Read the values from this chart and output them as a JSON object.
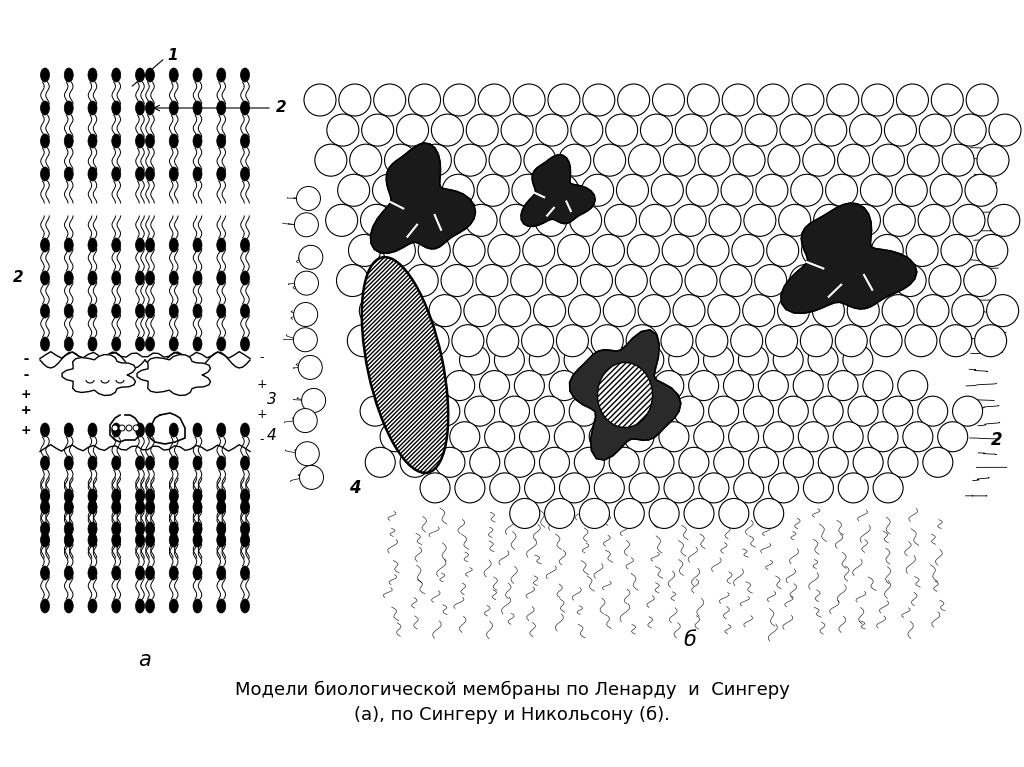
{
  "title_line1": "Модели биологической мембраны по Ленарду  и  Сингеру",
  "title_line2": "(а), по Сингеру и Никольсону (б).",
  "label_a": "а",
  "label_b": "б",
  "bg_color": "#ffffff",
  "ink_color": "#000000",
  "figure_width": 10.24,
  "figure_height": 7.67,
  "title_fontsize": 13,
  "label_fontsize": 14,
  "number_fontsize": 11
}
